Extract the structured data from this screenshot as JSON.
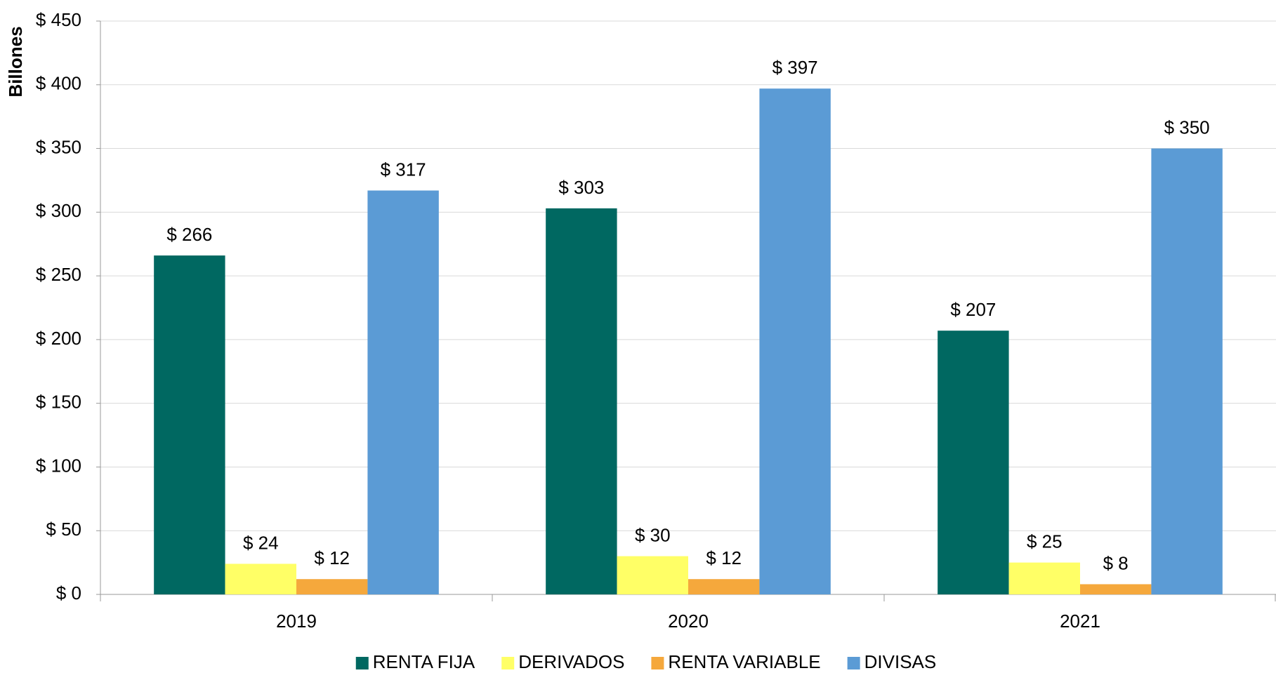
{
  "chart_data": {
    "type": "bar",
    "y_label": "Billones",
    "categories": [
      "2019",
      "2020",
      "2021"
    ],
    "series": [
      {
        "name": "RENTA FIJA",
        "color": "#006861",
        "values": [
          266,
          303,
          207
        ],
        "value_labels": [
          "$ 266",
          "$ 303",
          "$ 207"
        ]
      },
      {
        "name": "DERIVADOS",
        "color": "#FFFF66",
        "values": [
          24,
          30,
          25
        ],
        "value_labels": [
          "$ 24",
          "$ 30",
          "$ 25"
        ]
      },
      {
        "name": "RENTA VARIABLE",
        "color": "#F5A83C",
        "values": [
          12,
          12,
          8
        ],
        "value_labels": [
          "$ 12",
          "$ 12",
          "$ 8"
        ]
      },
      {
        "name": "DIVISAS",
        "color": "#5B9BD5",
        "values": [
          317,
          397,
          350
        ],
        "value_labels": [
          "$ 317",
          "$ 397",
          "$ 350"
        ]
      }
    ],
    "ylim": [
      0,
      450
    ],
    "yticks": [
      {
        "value": 0,
        "label": "$ 0"
      },
      {
        "value": 50,
        "label": "$ 50"
      },
      {
        "value": 100,
        "label": "$ 100"
      },
      {
        "value": 150,
        "label": "$ 150"
      },
      {
        "value": 200,
        "label": "$ 200"
      },
      {
        "value": 250,
        "label": "$ 250"
      },
      {
        "value": 300,
        "label": "$ 300"
      },
      {
        "value": 350,
        "label": "$ 350"
      },
      {
        "value": 400,
        "label": "$ 400"
      },
      {
        "value": 450,
        "label": "$ 450"
      }
    ],
    "grid": true,
    "legend": "bottom"
  }
}
